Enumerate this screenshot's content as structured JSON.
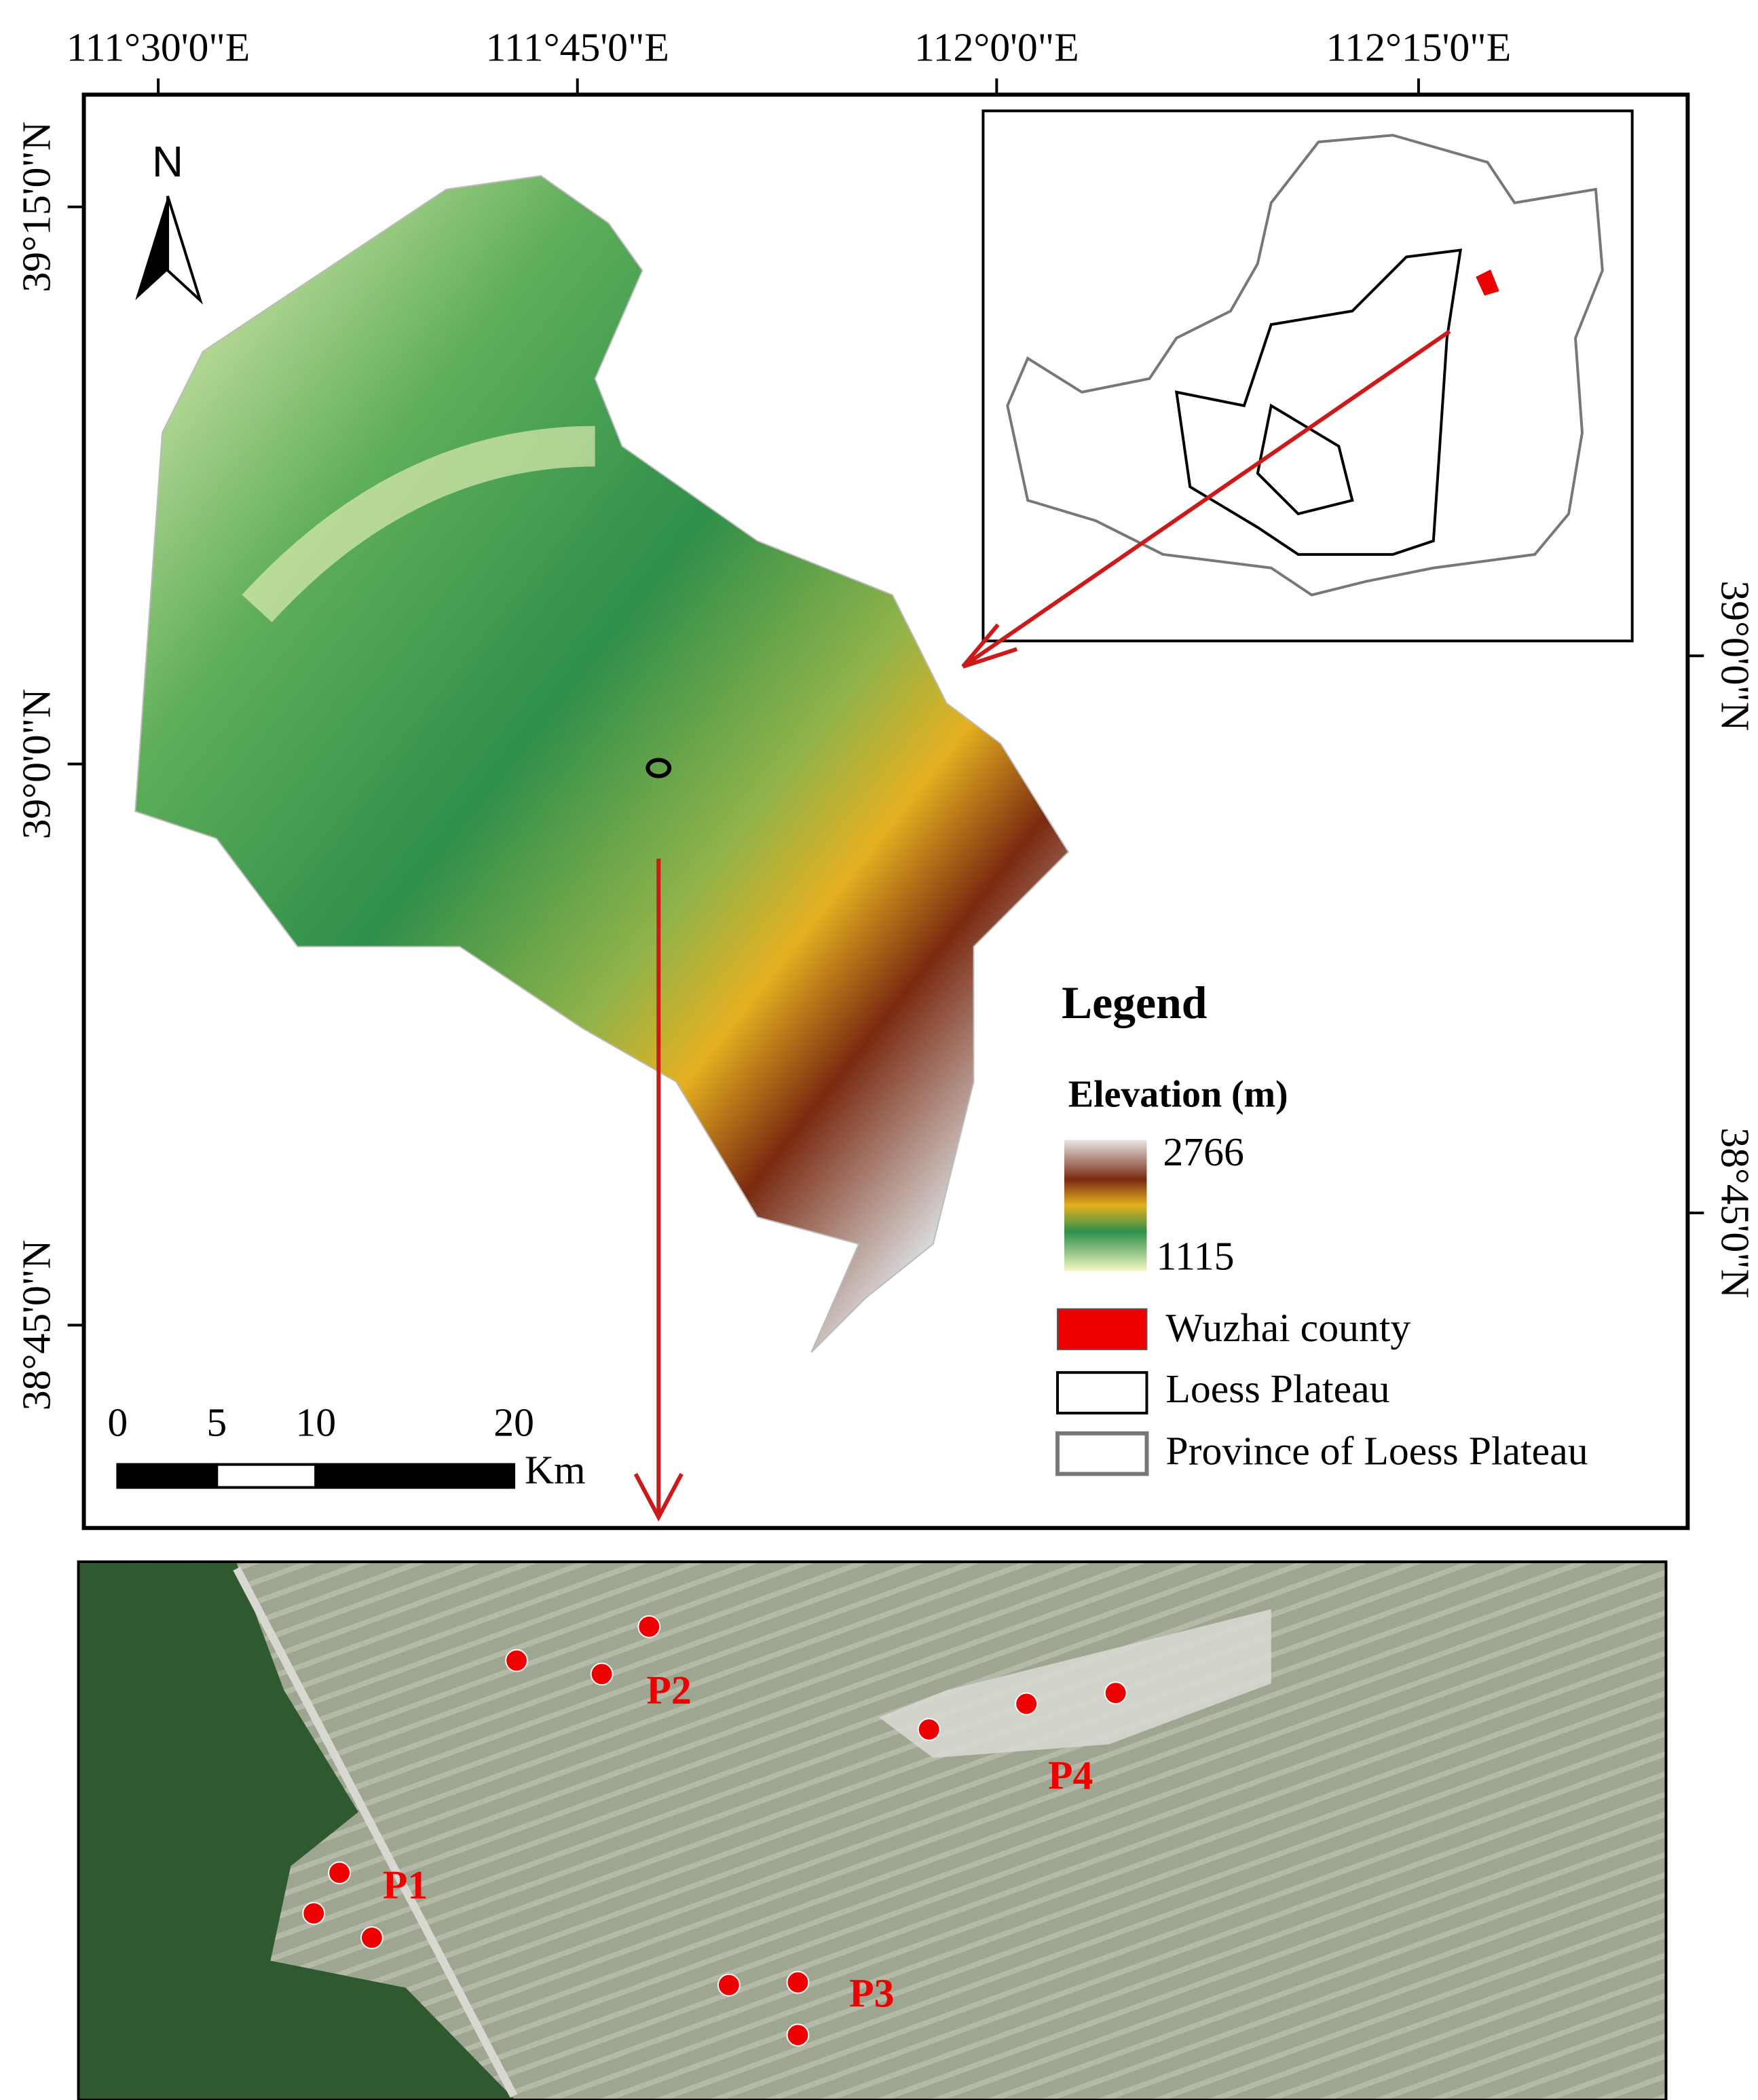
{
  "map": {
    "longitude_labels": [
      "111°30'0\"E",
      "111°45'0\"E",
      "112°0'0\"E",
      "112°15'0\"E"
    ],
    "latitude_labels_left": [
      "39°15'0\"N",
      "39°0'0\"N",
      "38°45'0\"N"
    ],
    "latitude_labels_right": [
      "39°0'0\"N",
      "38°45'0\"N"
    ],
    "north_arrow": "N",
    "scale_bar": {
      "ticks": [
        0,
        5,
        10,
        20
      ],
      "unit": "Km"
    },
    "legend": {
      "title": "Legend",
      "elevation": {
        "title": "Elevation (m)",
        "max": 2766,
        "min": 1115
      },
      "items": [
        {
          "label": "Wuzhai county"
        },
        {
          "label": "Loess Plateau"
        },
        {
          "label": "Province of Loess Plateau"
        }
      ]
    }
  },
  "inset_image": {
    "plots": [
      {
        "label": "P1"
      },
      {
        "label": "P2"
      },
      {
        "label": "P3"
      },
      {
        "label": "P4"
      }
    ]
  }
}
